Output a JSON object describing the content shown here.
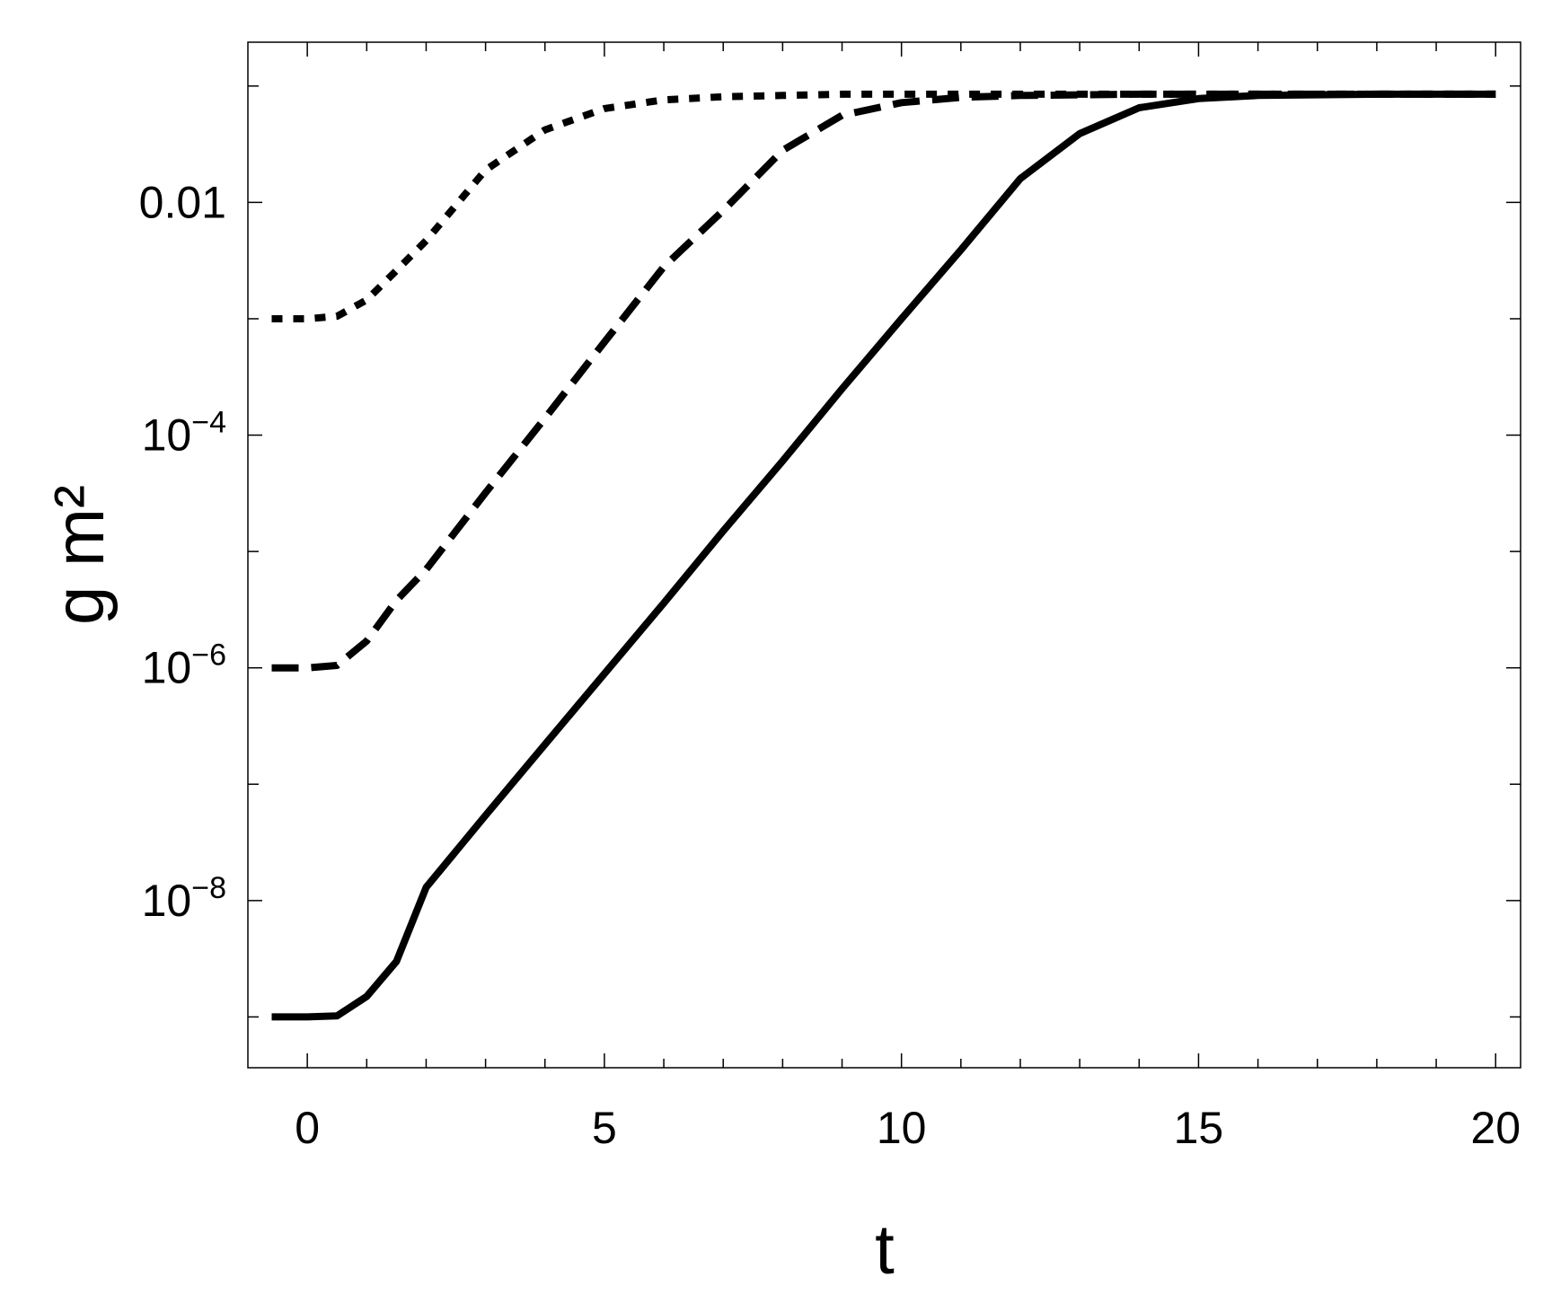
{
  "chart_data": {
    "type": "line",
    "x_label": "t",
    "y_label": "g m²",
    "y_log": true,
    "x": [
      -0.6,
      0,
      0.5,
      1,
      1.5,
      2,
      3,
      4,
      5,
      6,
      7,
      8,
      9,
      10,
      11,
      12,
      13,
      14,
      15,
      16,
      18,
      20
    ],
    "series": [
      {
        "color": "#000000",
        "dash": "solid",
        "values": [
          1e-09,
          1e-09,
          1.02e-09,
          1.5e-09,
          3e-09,
          1.3e-08,
          5.4e-08,
          2.2e-07,
          8.9e-07,
          3.6e-06,
          1.5e-05,
          6e-05,
          0.00025,
          0.001,
          0.0039,
          0.016,
          0.039,
          0.065,
          0.078,
          0.083,
          0.085,
          0.085
        ]
      },
      {
        "color": "#000000",
        "dash": "dashed",
        "values": [
          1e-06,
          1e-06,
          1.05e-06,
          1.7e-06,
          3.8e-06,
          7e-06,
          3.2e-05,
          0.00014,
          0.00063,
          0.0028,
          0.0085,
          0.028,
          0.056,
          0.072,
          0.08,
          0.083,
          0.084,
          0.085,
          0.085,
          0.085,
          0.085,
          0.085
        ]
      },
      {
        "color": "#000000",
        "dash": "dotted",
        "values": [
          0.001,
          0.001,
          0.00105,
          0.00145,
          0.0026,
          0.0047,
          0.019,
          0.042,
          0.064,
          0.076,
          0.081,
          0.083,
          0.085,
          0.085,
          0.085,
          0.085,
          0.085,
          0.085,
          0.085,
          0.085,
          0.085,
          0.085
        ]
      }
    ],
    "xlim": [
      -1.0,
      20.42
    ],
    "ylim": [
      3.66e-10,
      0.238
    ],
    "xticks": [
      0,
      5,
      10,
      15,
      20
    ],
    "xminorticks": [
      1,
      2,
      3,
      4,
      6,
      7,
      8,
      9,
      11,
      12,
      13,
      14,
      16,
      17,
      18,
      19
    ],
    "yticks": [
      {
        "value": 0.01,
        "label": "0.01"
      },
      {
        "value": 0.0001,
        "label": "10−4"
      },
      {
        "value": 1e-06,
        "label": "10−6"
      },
      {
        "value": 1e-08,
        "label": "10−8"
      }
    ],
    "yminorticks": [
      0.1,
      0.001,
      1e-05,
      1e-07,
      1e-09
    ]
  }
}
